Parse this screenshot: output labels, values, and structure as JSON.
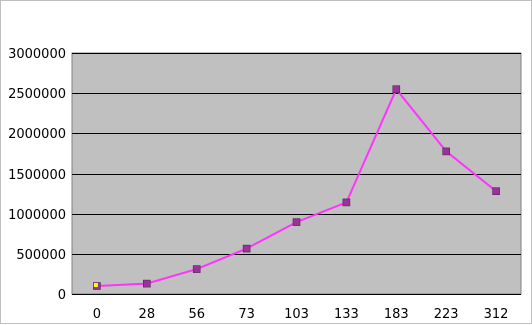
{
  "chart_data": {
    "type": "line",
    "title": "",
    "xlabel": "",
    "ylabel": "",
    "categories": [
      "0",
      "28",
      "56",
      "73",
      "103",
      "133",
      "183",
      "223",
      "312"
    ],
    "series": [
      {
        "values": [
          100000,
          130000,
          310000,
          565000,
          895000,
          1140000,
          2550000,
          1775000,
          1280000
        ],
        "color": "#ff33ff",
        "marker_color": "#993399"
      }
    ],
    "first_marker_color": "#ffff00",
    "ylim": [
      0,
      3000000
    ],
    "yticks": [
      0,
      500000,
      1000000,
      1500000,
      2000000,
      2500000,
      3000000
    ],
    "ytick_labels": [
      "0",
      "500000",
      "1000000",
      "1500000",
      "2000000",
      "2500000",
      "3000000"
    ],
    "grid": true,
    "legend": "none",
    "plot_background": "#c0c0c0"
  }
}
